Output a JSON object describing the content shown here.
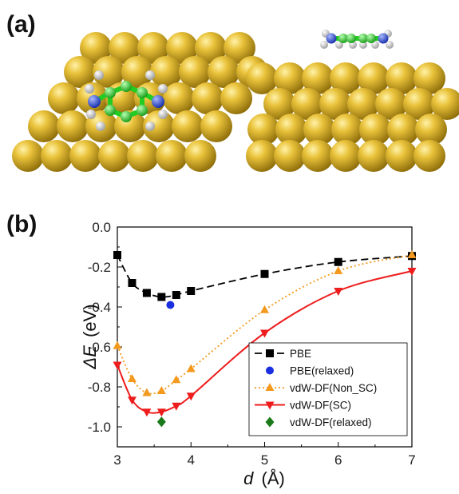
{
  "panels": {
    "a_label": "(a)",
    "b_label": "(b)"
  },
  "colors": {
    "gold": "#d4ac1e",
    "carbon": "#22cc22",
    "nitrogen": "#1f3fd9",
    "hydrogen": "#e8e8e8"
  },
  "chart_data": {
    "type": "line",
    "xlabel_var": "d",
    "xlabel_unit": "(Å)",
    "ylabel_var": "ΔE",
    "ylabel_unit": "(eV)",
    "xlim": [
      3,
      7
    ],
    "ylim": [
      -1.1,
      0.0
    ],
    "xticks": [
      3,
      4,
      5,
      6,
      7
    ],
    "xtick_labels": [
      "3",
      "4",
      "5",
      "6",
      "7"
    ],
    "yticks": [
      0.0,
      -0.2,
      -0.4,
      -0.6,
      -0.8,
      -1.0
    ],
    "ytick_labels": [
      "0.0",
      "-0.2",
      "-0.4",
      "-0.6",
      "-0.8",
      "-1.0"
    ],
    "grid": false,
    "legend_position": "bottom-right",
    "series": [
      {
        "name": "PBE",
        "color": "#000000",
        "marker": "square",
        "line": "dashed",
        "x": [
          3.0,
          3.2,
          3.4,
          3.6,
          3.8,
          4.0,
          5.0,
          6.0,
          7.0
        ],
        "y": [
          -0.14,
          -0.28,
          -0.33,
          -0.35,
          -0.34,
          -0.32,
          -0.235,
          -0.175,
          -0.145
        ]
      },
      {
        "name": "PBE(relaxed)",
        "color": "#1a2fe0",
        "marker": "circle",
        "line": "none",
        "x": [
          3.72
        ],
        "y": [
          -0.39
        ]
      },
      {
        "name": "vdW-DF(Non_SC)",
        "color": "#f39a1e",
        "marker": "triangle-up",
        "line": "dotted",
        "x": [
          3.0,
          3.2,
          3.4,
          3.6,
          3.8,
          4.0,
          5.0,
          6.0,
          7.0
        ],
        "y": [
          -0.595,
          -0.76,
          -0.83,
          -0.82,
          -0.765,
          -0.71,
          -0.415,
          -0.22,
          -0.14
        ]
      },
      {
        "name": "vdW-DF(SC)",
        "color": "#ee1c1c",
        "marker": "triangle-down",
        "line": "solid",
        "x": [
          3.0,
          3.2,
          3.4,
          3.6,
          3.8,
          4.0,
          5.0,
          6.0,
          7.0
        ],
        "y": [
          -0.69,
          -0.865,
          -0.925,
          -0.925,
          -0.895,
          -0.845,
          -0.53,
          -0.32,
          -0.22
        ]
      },
      {
        "name": "vdW-DF(relaxed)",
        "color": "#1a7a1a",
        "marker": "diamond",
        "line": "none",
        "x": [
          3.6
        ],
        "y": [
          -0.975
        ]
      }
    ]
  }
}
